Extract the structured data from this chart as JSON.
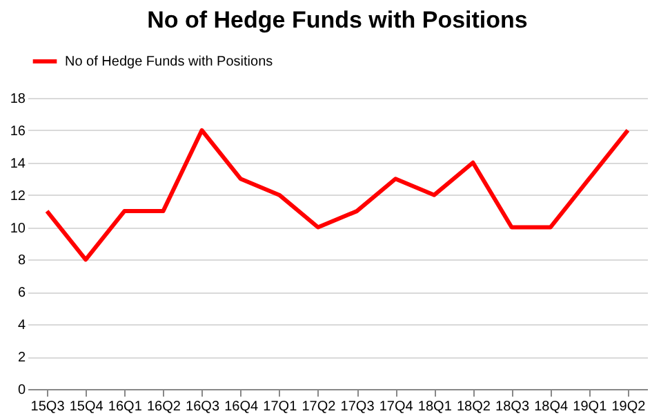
{
  "chart_data": {
    "type": "line",
    "title": "No of Hedge Funds with Positions",
    "categories": [
      "15Q3",
      "15Q4",
      "16Q1",
      "16Q2",
      "16Q3",
      "16Q4",
      "17Q1",
      "17Q2",
      "17Q3",
      "17Q4",
      "18Q1",
      "18Q2",
      "18Q3",
      "18Q4",
      "19Q1",
      "19Q2"
    ],
    "series": [
      {
        "name": "No of Hedge Funds with Positions",
        "color": "#ff0000",
        "values": [
          11,
          8,
          11,
          11,
          16,
          13,
          12,
          10,
          11,
          13,
          12,
          14,
          10,
          10,
          13,
          16
        ]
      }
    ],
    "ylim": [
      0,
      18
    ],
    "yticks": [
      0,
      2,
      4,
      6,
      8,
      10,
      12,
      14,
      16,
      18
    ],
    "grid": "y",
    "legend": "top",
    "marker": "none",
    "line_style": "solid"
  }
}
